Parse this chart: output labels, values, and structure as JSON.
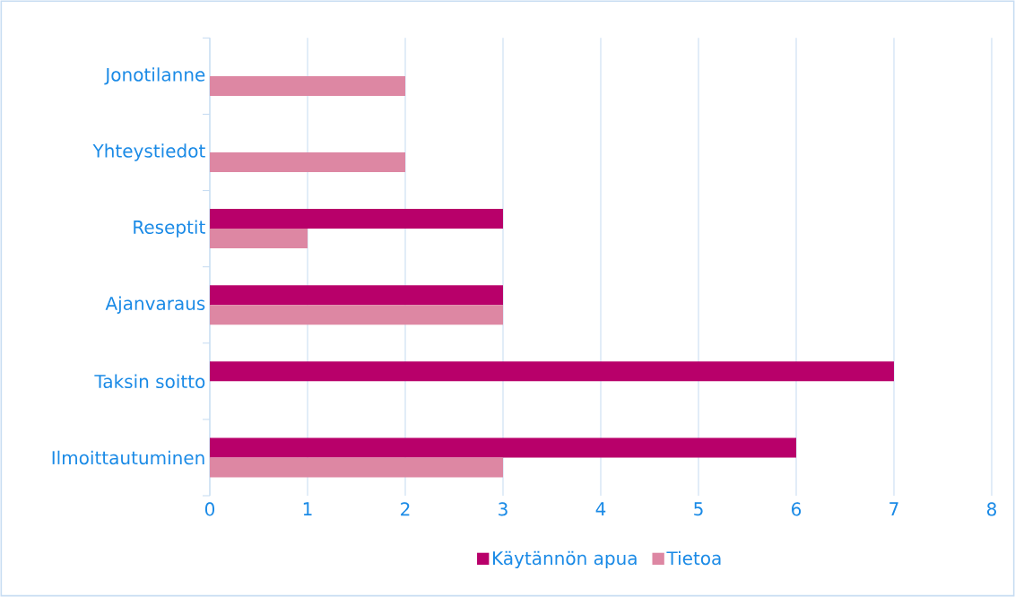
{
  "chart_data": {
    "type": "bar",
    "orientation": "horizontal",
    "categories": [
      "Jonotilanne",
      "Yhteystiedot",
      "Reseptit",
      "Ajanvaraus",
      "Taksin soitto",
      "Ilmoittautuminen"
    ],
    "series": [
      {
        "name": "Käytännön apua",
        "color": "#b8006a",
        "values": [
          0,
          0,
          3,
          3,
          7,
          6
        ]
      },
      {
        "name": "Tietoa",
        "color": "#dd87a3",
        "values": [
          2,
          2,
          1,
          3,
          0,
          3
        ]
      }
    ],
    "xlim": [
      0,
      8
    ],
    "xticks": [
      0,
      1,
      2,
      3,
      4,
      5,
      6,
      7,
      8
    ],
    "grid": "x",
    "legend": "bottom"
  }
}
